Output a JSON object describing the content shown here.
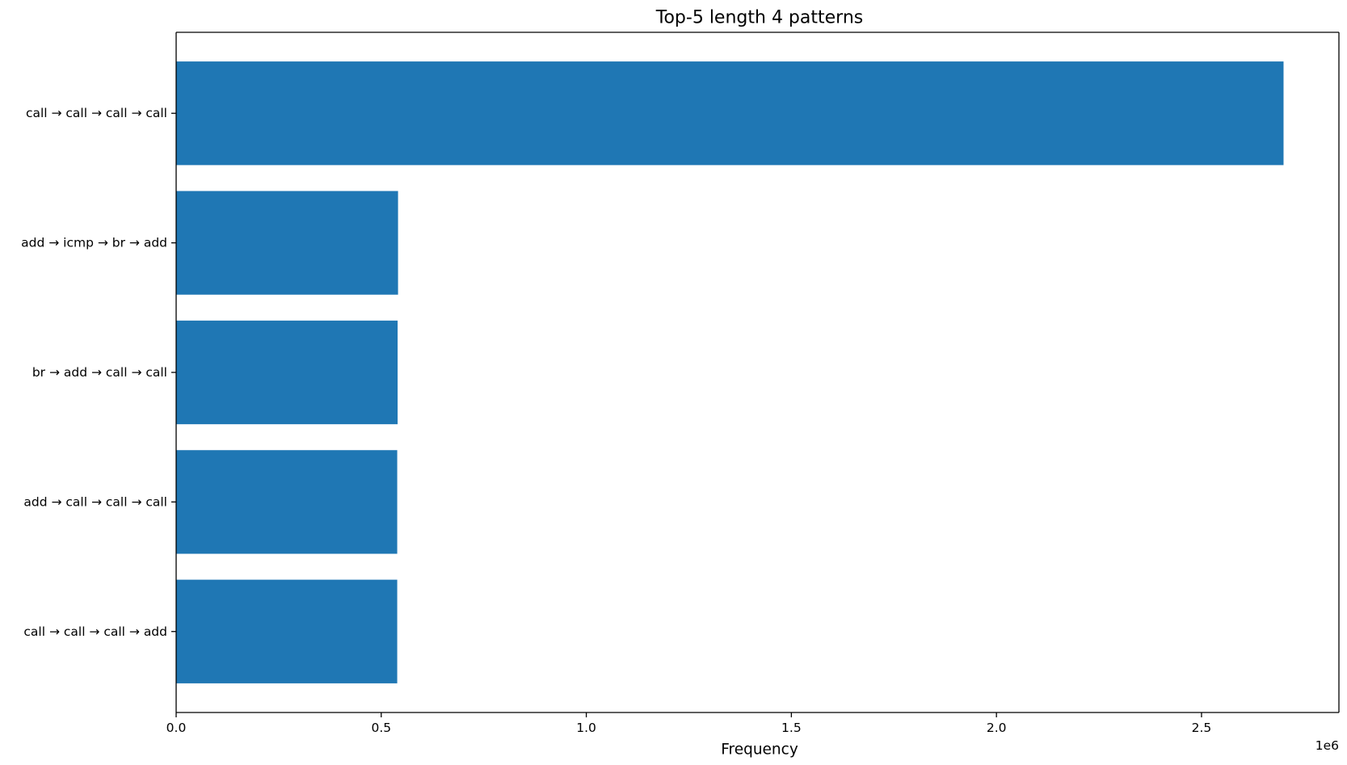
{
  "chart_data": {
    "type": "bar",
    "orientation": "horizontal",
    "title": "Top-5 length 4 patterns",
    "xlabel": "Frequency",
    "ylabel": "",
    "x_offset_label": "1e6",
    "x_scale_factor": 1000000,
    "xlim": [
      0,
      2835000
    ],
    "x_ticks": [
      0,
      500000,
      1000000,
      1500000,
      2000000,
      2500000
    ],
    "x_tick_labels": [
      "0.0",
      "0.5",
      "1.0",
      "1.5",
      "2.0",
      "2.5"
    ],
    "categories": [
      "call → call → call → call",
      "add → icmp → br → add",
      "br → add → call → call",
      "add → call → call → call",
      "call → call → call → add"
    ],
    "values": [
      2700000,
      541000,
      540000,
      539000,
      539000
    ],
    "bar_color": "#1f77b4",
    "grid": false,
    "legend": "none"
  }
}
